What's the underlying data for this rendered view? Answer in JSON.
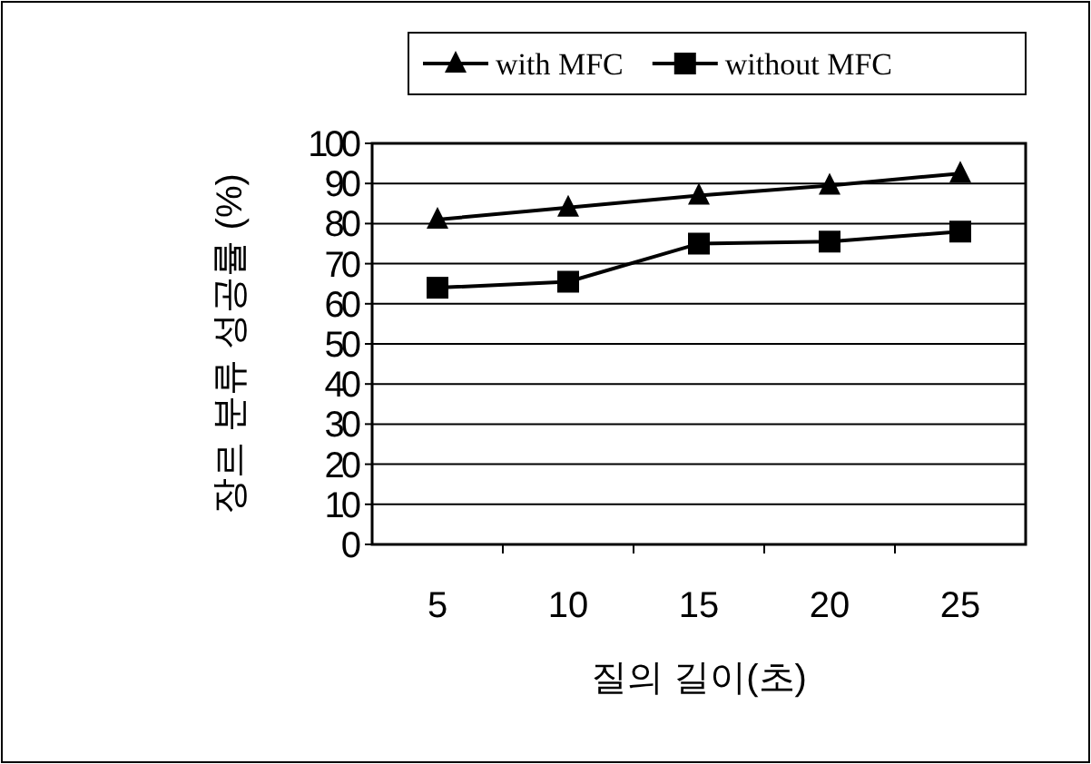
{
  "chart_data": {
    "type": "line",
    "xlabel": "질의 길이(초)",
    "ylabel": "장르 분류 성공률 (%)",
    "categories": [
      "5",
      "10",
      "15",
      "20",
      "25"
    ],
    "series": [
      {
        "name": "with MFC",
        "color": "#000000",
        "marker": "triangle",
        "values": [
          81,
          84,
          87,
          89.5,
          92.5
        ]
      },
      {
        "name": "without MFC",
        "color": "#000000",
        "marker": "square",
        "values": [
          64,
          65.5,
          75,
          75.5,
          78
        ]
      }
    ],
    "ylim": [
      0,
      100
    ],
    "yticks": [
      0,
      10,
      20,
      30,
      40,
      50,
      60,
      70,
      80,
      90,
      100
    ],
    "grid": "y",
    "legend": "top"
  }
}
